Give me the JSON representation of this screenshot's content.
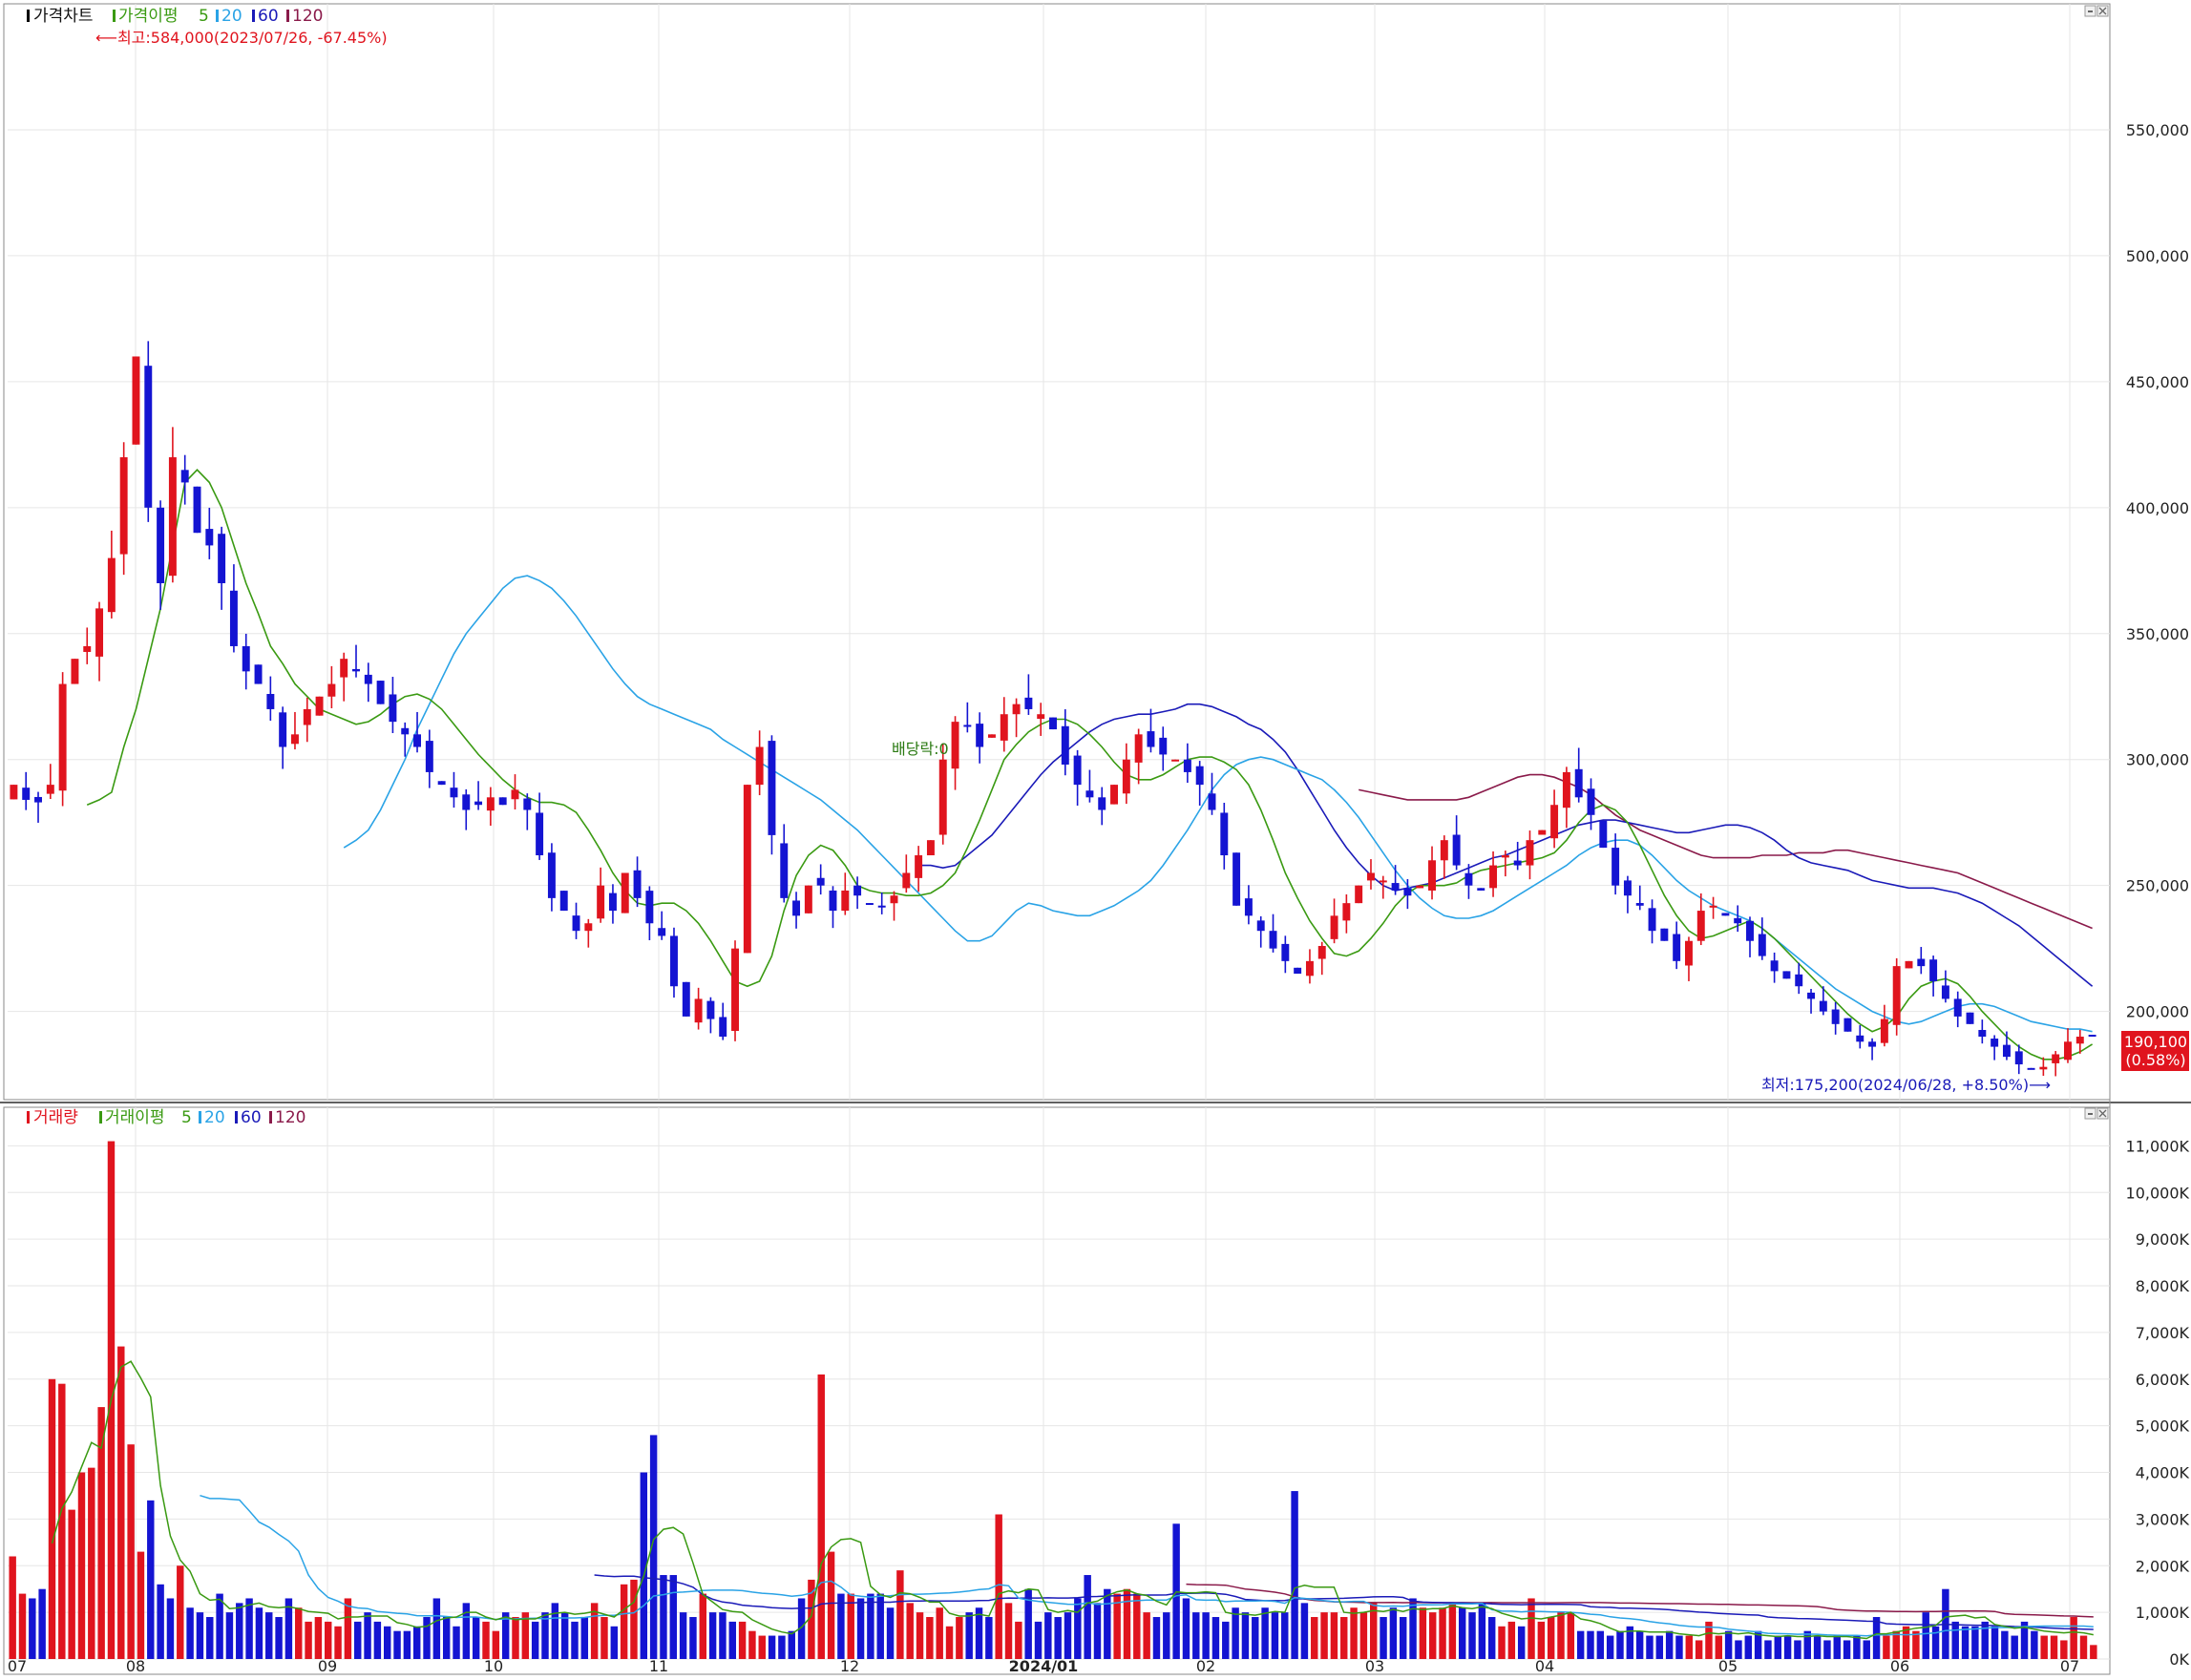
{
  "price_panel": {
    "title": "가격차트",
    "ma_label": "가격이평",
    "ma_periods": [
      "5",
      "20",
      "60",
      "120"
    ],
    "high_note": "최고:584,000(2023/07/26, -67.45%)",
    "low_note": "최저:175,200(2024/06/28, +8.50%)",
    "dividend_note": "배당락:0",
    "current_price": "190,100",
    "current_change": "(0.58%)"
  },
  "volume_panel": {
    "title": "거래량",
    "ma_label": "거래이평",
    "ma_periods": [
      "5",
      "20",
      "60",
      "120"
    ]
  },
  "colors": {
    "up": "#e0141e",
    "down": "#1414d2",
    "ma5": "#3a9a12",
    "ma20": "#2aa3e6",
    "ma60": "#1a1ab8",
    "ma120": "#8a1a4a",
    "grid": "#e6e6e6"
  },
  "chart_data": [
    {
      "type": "candlestick",
      "title": "가격차트",
      "ylim": [
        165000,
        600000
      ],
      "y_ticks": [
        "200,000",
        "250,000",
        "300,000",
        "350,000",
        "400,000",
        "450,000",
        "500,000",
        "550,000"
      ],
      "x_ticks": [
        "07",
        "08",
        "09",
        "10",
        "11",
        "12",
        "2024/01",
        "02",
        "03",
        "04",
        "05",
        "06",
        "07"
      ],
      "close_series": [
        290000,
        284000,
        283000,
        290000,
        330000,
        340000,
        345000,
        360000,
        380000,
        420000,
        460000,
        400000,
        370000,
        420000,
        410000,
        390000,
        385000,
        370000,
        345000,
        335000,
        330000,
        320000,
        305000,
        310000,
        320000,
        325000,
        330000,
        340000,
        335000,
        330000,
        322000,
        315000,
        310000,
        305000,
        295000,
        290000,
        285000,
        280000,
        282000,
        285000,
        282000,
        288000,
        280000,
        262000,
        245000,
        240000,
        232000,
        235000,
        250000,
        240000,
        255000,
        245000,
        235000,
        230000,
        210000,
        198000,
        205000,
        197000,
        190000,
        225000,
        290000,
        305000,
        270000,
        245000,
        238000,
        250000,
        250000,
        240000,
        248000,
        246000,
        243000,
        242000,
        246000,
        255000,
        262000,
        268000,
        300000,
        315000,
        313000,
        305000,
        310000,
        318000,
        322000,
        320000,
        318000,
        312000,
        298000,
        290000,
        285000,
        280000,
        290000,
        300000,
        310000,
        305000,
        302000,
        300000,
        295000,
        290000,
        280000,
        262000,
        242000,
        238000,
        232000,
        225000,
        220000,
        215000,
        220000,
        226000,
        238000,
        243000,
        250000,
        255000,
        252000,
        248000,
        246000,
        250000,
        260000,
        268000,
        258000,
        250000,
        248000,
        258000,
        262000,
        258000,
        268000,
        272000,
        282000,
        295000,
        285000,
        278000,
        265000,
        250000,
        246000,
        242000,
        232000,
        228000,
        220000,
        228000,
        240000,
        242000,
        238000,
        235000,
        228000,
        222000,
        216000,
        213000,
        210000,
        205000,
        200000,
        195000,
        192000,
        188000,
        186000,
        197000,
        218000,
        220000,
        218000,
        212000,
        205000,
        198000,
        195000,
        190000,
        186000,
        182000,
        179000,
        177000,
        178000,
        183000,
        188000,
        190000,
        190100
      ],
      "ma5": [
        282000,
        284000,
        287000,
        305000,
        320000,
        340000,
        360000,
        385000,
        410000,
        415000,
        410000,
        400000,
        385000,
        370000,
        358000,
        345000,
        338000,
        330000,
        325000,
        320000,
        318000,
        316000,
        314000,
        315000,
        318000,
        322000,
        325000,
        326000,
        324000,
        320000,
        314000,
        308000,
        302000,
        297000,
        292000,
        288000,
        285000,
        283000,
        283000,
        282000,
        279000,
        272000,
        264000,
        255000,
        248000,
        243000,
        242000,
        243000,
        243000,
        240000,
        235000,
        228000,
        220000,
        212000,
        210000,
        212000,
        222000,
        240000,
        254000,
        262000,
        266000,
        264000,
        258000,
        250000,
        248000,
        247000,
        247000,
        246000,
        246000,
        247000,
        250000,
        255000,
        265000,
        276000,
        288000,
        300000,
        306000,
        311000,
        314000,
        316000,
        316000,
        314000,
        310000,
        305000,
        299000,
        294000,
        292000,
        292000,
        294000,
        297000,
        300000,
        301000,
        301000,
        299000,
        296000,
        290000,
        280000,
        268000,
        255000,
        245000,
        236000,
        229000,
        223000,
        222000,
        224000,
        229000,
        235000,
        242000,
        247000,
        250000,
        250000,
        250000,
        251000,
        254000,
        256000,
        257000,
        258000,
        259000,
        260000,
        261000,
        263000,
        268000,
        275000,
        280000,
        282000,
        280000,
        275000,
        266000,
        256000,
        246000,
        238000,
        232000,
        229000,
        230000,
        232000,
        234000,
        236000,
        233000,
        229000,
        224000,
        219000,
        214000,
        209000,
        204000,
        199000,
        195000,
        192000,
        194000,
        198000,
        205000,
        210000,
        212000,
        213000,
        211000,
        206000,
        200000,
        195000,
        190000,
        186000,
        183000,
        181000,
        181000,
        182000,
        184000,
        187000
      ],
      "ma20": [
        265000,
        268000,
        272000,
        280000,
        290000,
        300000,
        312000,
        322000,
        332000,
        342000,
        350000,
        356000,
        362000,
        368000,
        372000,
        373000,
        371000,
        368000,
        363000,
        357000,
        350000,
        343000,
        336000,
        330000,
        325000,
        322000,
        320000,
        318000,
        316000,
        314000,
        312000,
        308000,
        305000,
        302000,
        299000,
        296000,
        293000,
        290000,
        287000,
        284000,
        280000,
        276000,
        272000,
        267000,
        262000,
        257000,
        252000,
        247000,
        242000,
        237000,
        232000,
        228000,
        228000,
        230000,
        235000,
        240000,
        243000,
        242000,
        240000,
        239000,
        238000,
        238000,
        240000,
        242000,
        245000,
        248000,
        252000,
        258000,
        265000,
        272000,
        280000,
        288000,
        294000,
        298000,
        300000,
        301000,
        300000,
        298000,
        296000,
        294000,
        292000,
        288000,
        283000,
        277000,
        270000,
        263000,
        256000,
        250000,
        245000,
        241000,
        238000,
        237000,
        237000,
        238000,
        240000,
        243000,
        246000,
        249000,
        252000,
        255000,
        258000,
        262000,
        265000,
        267000,
        268000,
        268000,
        266000,
        262000,
        257000,
        252000,
        248000,
        245000,
        242000,
        240000,
        238000,
        236000,
        233000,
        229000,
        225000,
        221000,
        217000,
        213000,
        209000,
        206000,
        203000,
        200000,
        198000,
        196000,
        195000,
        196000,
        198000,
        200000,
        202000,
        203000,
        203000,
        202000,
        200000,
        198000,
        196000,
        195000,
        194000,
        193000,
        193000,
        192000
      ],
      "ma60": [
        258000,
        258000,
        257000,
        258000,
        262000,
        266000,
        270000,
        276000,
        282000,
        288000,
        294000,
        299000,
        303000,
        307000,
        311000,
        314000,
        316000,
        317000,
        318000,
        318000,
        319000,
        320000,
        322000,
        322000,
        321000,
        319000,
        317000,
        314000,
        312000,
        308000,
        303000,
        296000,
        288000,
        280000,
        272000,
        265000,
        259000,
        254000,
        250000,
        248000,
        249000,
        250000,
        251000,
        253000,
        255000,
        257000,
        259000,
        261000,
        262000,
        264000,
        266000,
        268000,
        270000,
        272000,
        274000,
        275000,
        276000,
        276000,
        275000,
        274000,
        273000,
        272000,
        271000,
        271000,
        272000,
        273000,
        274000,
        274000,
        273000,
        271000,
        268000,
        264000,
        261000,
        259000,
        258000,
        257000,
        256000,
        254000,
        252000,
        251000,
        250000,
        249000,
        249000,
        249000,
        248000,
        247000,
        245000,
        243000,
        240000,
        237000,
        234000,
        230000,
        226000,
        222000,
        218000,
        214000,
        210000
      ],
      "ma120": [
        288000,
        287000,
        286000,
        285000,
        284000,
        284000,
        284000,
        284000,
        284000,
        285000,
        287000,
        289000,
        291000,
        293000,
        294000,
        294000,
        293000,
        291000,
        289000,
        286000,
        282000,
        278000,
        275000,
        272000,
        270000,
        268000,
        266000,
        264000,
        262000,
        261000,
        261000,
        261000,
        261000,
        262000,
        262000,
        262000,
        263000,
        263000,
        263000,
        264000,
        264000,
        263000,
        262000,
        261000,
        260000,
        259000,
        258000,
        257000,
        256000,
        255000,
        253000,
        251000,
        249000,
        247000,
        245000,
        243000,
        241000,
        239000,
        237000,
        235000,
        233000
      ]
    },
    {
      "type": "bar",
      "title": "거래량",
      "ylim": [
        0,
        11500
      ],
      "unit": "K",
      "y_ticks": [
        "0K",
        "1,000K",
        "2,000K",
        "3,000K",
        "4,000K",
        "5,000K",
        "6,000K",
        "7,000K",
        "8,000K",
        "9,000K",
        "10,000K",
        "11,000K"
      ],
      "x_ticks": [
        "07",
        "08",
        "09",
        "10",
        "11",
        "12",
        "2024/01",
        "02",
        "03",
        "04",
        "05",
        "06",
        "07"
      ],
      "values": [
        2200,
        1400,
        1300,
        1500,
        6000,
        5900,
        3200,
        4000,
        4100,
        5400,
        11100,
        6700,
        4600,
        2300,
        3400,
        1600,
        1300,
        2000,
        1100,
        1000,
        900,
        1400,
        1000,
        1200,
        1300,
        1100,
        1000,
        900,
        1300,
        1100,
        800,
        900,
        800,
        700,
        1300,
        800,
        1000,
        800,
        700,
        600,
        600,
        700,
        900,
        1300,
        900,
        700,
        1200,
        900,
        800,
        600,
        1000,
        900,
        1000,
        800,
        1000,
        1200,
        1000,
        800,
        900,
        1200,
        900,
        700,
        1600,
        1700,
        4000,
        4800,
        1800,
        1800,
        1000,
        900,
        1400,
        1000,
        1000,
        800,
        800,
        600,
        500,
        500,
        500,
        600,
        1300,
        1700,
        6100,
        2300,
        1400,
        1400,
        1300,
        1400,
        1400,
        1100,
        1900,
        1200,
        1000,
        900,
        1100,
        700,
        900,
        1000,
        1100,
        900,
        3100,
        1200,
        800,
        1500,
        800,
        1000,
        900,
        1000,
        1300,
        1800,
        1200,
        1500,
        1400,
        1500,
        1400,
        1000,
        900,
        1000,
        2900,
        1300,
        1000,
        1000,
        900,
        800,
        1100,
        1000,
        900,
        1100,
        1000,
        1000,
        3600,
        1200,
        900,
        1000,
        1000,
        900,
        1100,
        1000,
        1200,
        900,
        1100,
        900,
        1300,
        1100,
        1000,
        1100,
        1200,
        1100,
        1000,
        1200,
        900,
        700,
        800,
        700,
        1300,
        800,
        900,
        1000,
        1000,
        600,
        600,
        600,
        500,
        600,
        700,
        600,
        500,
        500,
        600,
        500,
        500,
        400,
        800,
        500,
        600,
        400,
        500,
        600,
        400,
        500,
        500,
        400,
        600,
        500,
        400,
        500,
        400,
        500,
        400,
        900,
        500,
        600,
        700,
        600,
        1000,
        700,
        1500,
        800,
        700,
        700,
        800,
        700,
        600,
        500,
        800,
        600,
        500,
        500,
        400,
        900,
        500,
        300
      ]
    }
  ]
}
